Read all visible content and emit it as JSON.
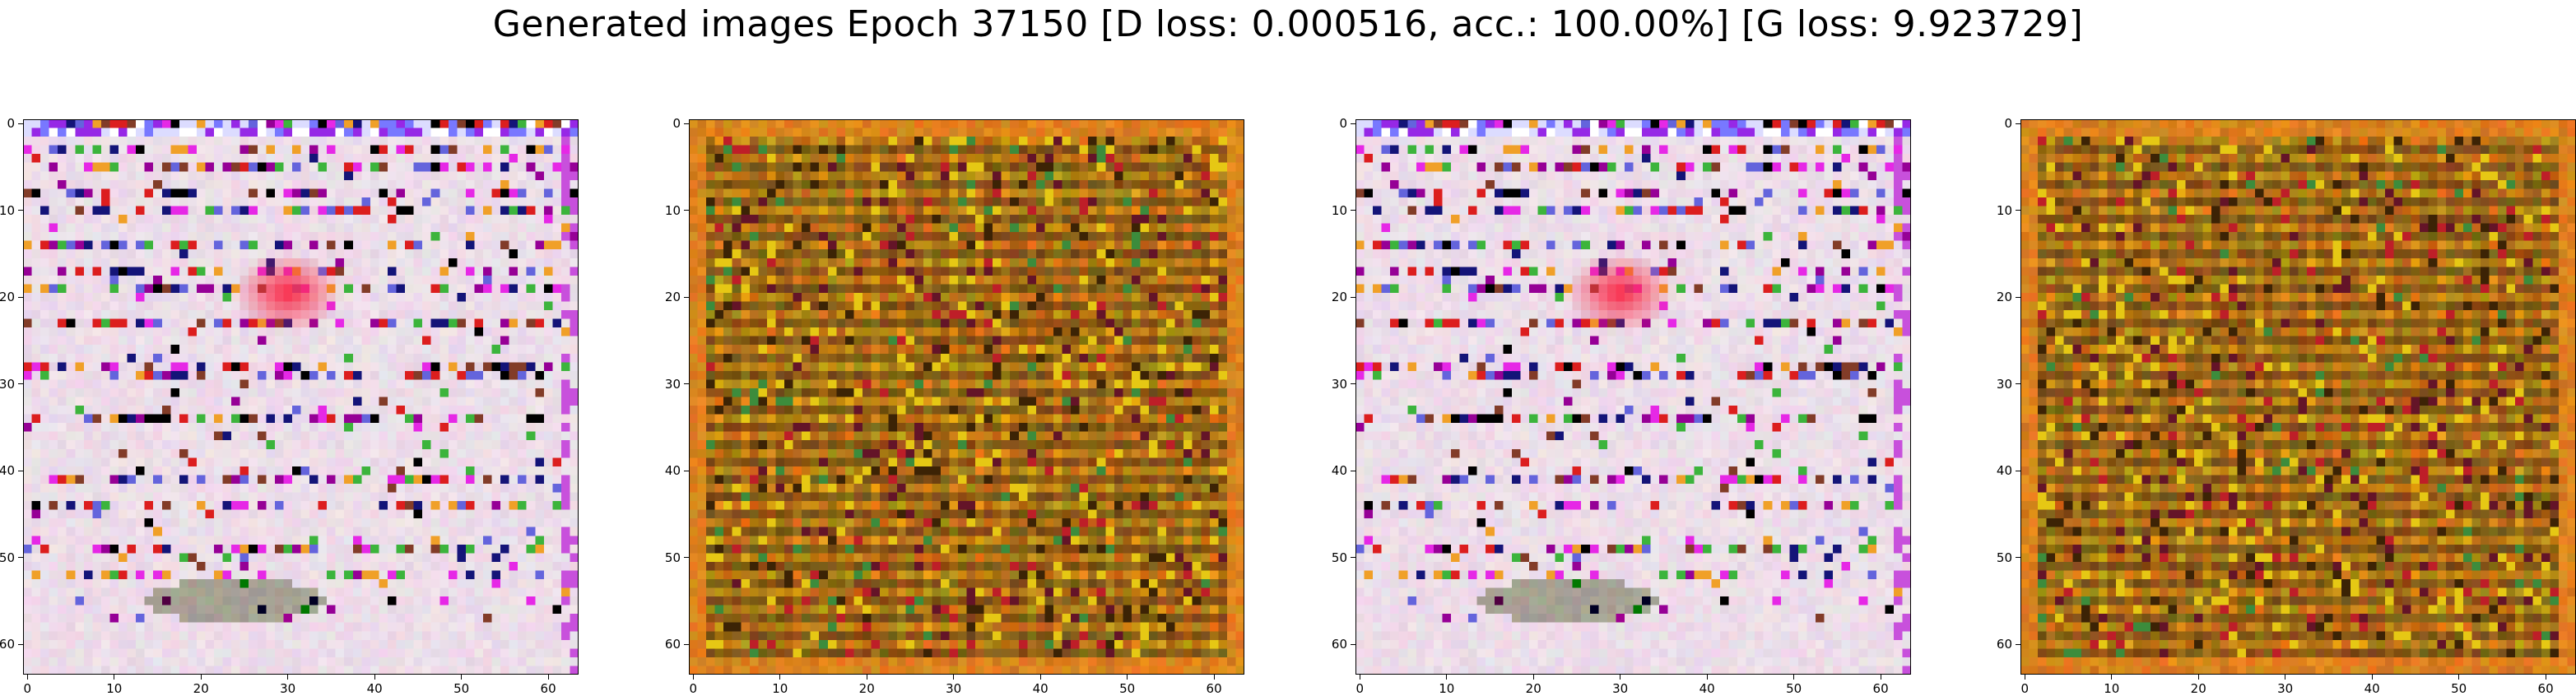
{
  "title": "Generated images Epoch 37150 [D loss: 0.000516, acc.: 100.00%] [G loss: 9.923729]",
  "panels": [
    {
      "name": "generated-image-1",
      "style": "light"
    },
    {
      "name": "generated-image-2",
      "style": "dark"
    },
    {
      "name": "generated-image-3",
      "style": "light"
    },
    {
      "name": "generated-image-4",
      "style": "dark"
    }
  ],
  "axis": {
    "x_ticks": [
      "0",
      "10",
      "20",
      "30",
      "40",
      "50",
      "60"
    ],
    "y_ticks": [
      "0",
      "10",
      "20",
      "30",
      "40",
      "50",
      "60"
    ],
    "x_values": [
      0,
      10,
      20,
      30,
      40,
      50,
      60
    ],
    "y_values": [
      0,
      10,
      20,
      30,
      40,
      50,
      60
    ],
    "range": [
      -0.5,
      63.5
    ]
  },
  "colors": {
    "light_base": "#f4e6f0",
    "dark_base": "#b8700f"
  }
}
